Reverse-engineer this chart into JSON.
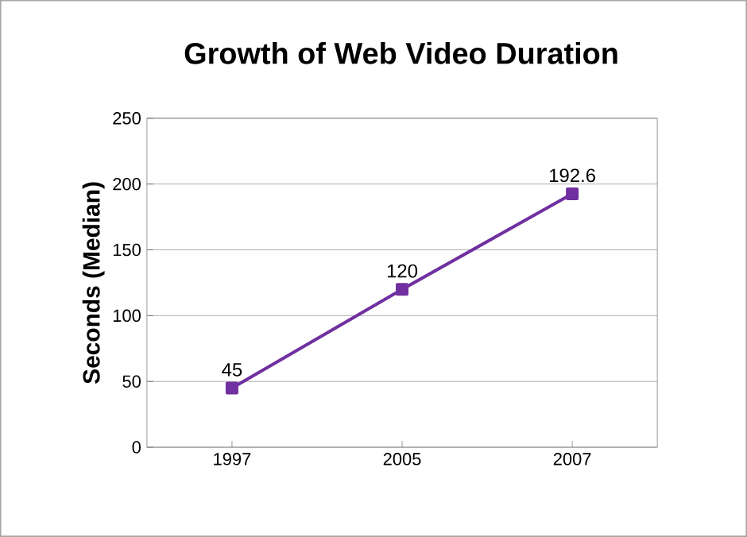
{
  "chart_data": {
    "type": "line",
    "title": "Growth of Web Video Duration",
    "ylabel": "Seconds (Median)",
    "categories": [
      "1997",
      "2005",
      "2007"
    ],
    "series": [
      {
        "color": "#7030a0",
        "values": [
          45,
          120,
          192.6
        ]
      }
    ],
    "ylim": [
      0,
      250
    ],
    "yticks": [
      0,
      50,
      100,
      150,
      200,
      250
    ],
    "grid": "y",
    "marker": "square",
    "line_style": "solid",
    "data_labels": true
  }
}
